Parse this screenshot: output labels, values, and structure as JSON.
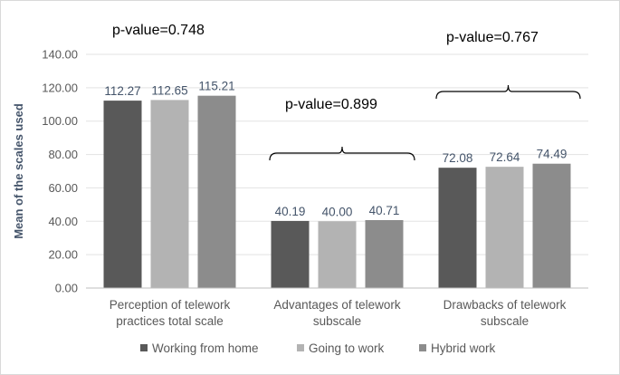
{
  "chart_data": {
    "type": "bar",
    "categories": [
      [
        "Perception of telework",
        "practices total scale"
      ],
      [
        "Advantages of telework",
        "subscale"
      ],
      [
        "Drawbacks of telework",
        "subscale"
      ]
    ],
    "series": [
      {
        "name": "Working from home",
        "color": "#595959",
        "values": [
          112.27,
          40.19,
          72.08
        ],
        "labels": [
          "112.27",
          "40.19",
          "72.08"
        ]
      },
      {
        "name": "Going to work",
        "color": "#b3b3b3",
        "values": [
          112.65,
          40.0,
          72.64
        ],
        "labels": [
          "112.65",
          "40.00",
          "72.64"
        ]
      },
      {
        "name": "Hybrid work",
        "color": "#8c8c8c",
        "values": [
          115.21,
          40.71,
          74.49
        ],
        "labels": [
          "115.21",
          "40.71",
          "74.49"
        ]
      }
    ],
    "yticks": [
      "0.00",
      "20.00",
      "40.00",
      "60.00",
      "80.00",
      "100.00",
      "120.00",
      "140.00"
    ],
    "ylim": [
      0,
      140
    ],
    "ylabel": "Mean of the scales used",
    "xlabel": "",
    "title": "",
    "annotations": [
      "p-value=0.748",
      "p-value=0.899",
      "p-value=0.767"
    ],
    "grid": "horizontal",
    "legend_position": "bottom"
  }
}
